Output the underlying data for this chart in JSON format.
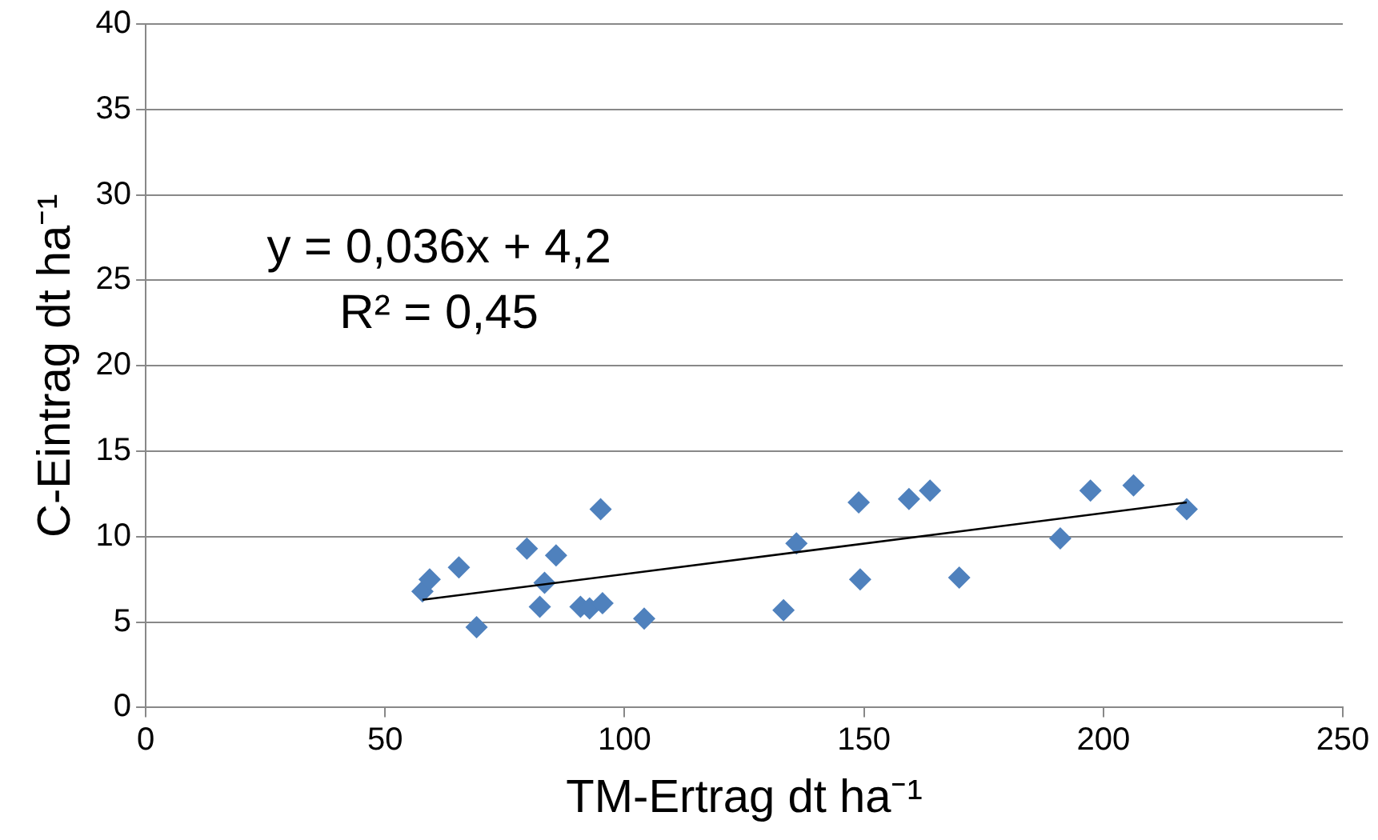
{
  "chart_data": {
    "type": "scatter",
    "xlabel": "TM-Ertrag dt ha⁻¹",
    "ylabel": "C-Eintrag dt ha⁻¹",
    "xlim": [
      0,
      250
    ],
    "xticks": [
      0,
      50,
      100,
      150,
      200,
      250
    ],
    "ylim": [
      0,
      40
    ],
    "yticks": [
      0,
      5,
      10,
      15,
      20,
      25,
      30,
      35,
      40
    ],
    "grid": "y",
    "legend": false,
    "marker": "diamond",
    "annotations": [
      "y = 0,036x + 4,2",
      "R² = 0,45"
    ],
    "series": [
      {
        "color": "#4f81bd",
        "x": [
          57.8,
          59.3,
          65.4,
          69.1,
          79.6,
          82.3,
          83.3,
          85.7,
          90.8,
          92.7,
          95.0,
          95.4,
          104.1,
          133.2,
          135.9,
          148.9,
          149.2,
          159.4,
          163.8,
          169.9,
          191.0,
          197.3,
          206.3,
          217.4
        ],
        "values": [
          6.8,
          7.5,
          8.2,
          4.7,
          9.3,
          5.9,
          7.3,
          8.9,
          5.9,
          5.8,
          11.6,
          6.1,
          5.2,
          5.7,
          9.6,
          12.0,
          7.5,
          12.2,
          12.7,
          7.6,
          9.9,
          12.7,
          13.0,
          11.6
        ]
      },
      {
        "type": "line",
        "color": "#000000",
        "marker": "none",
        "line_style": "solid",
        "x": [
          57.8,
          217.4
        ],
        "values": [
          6.3,
          12.0
        ]
      }
    ]
  }
}
